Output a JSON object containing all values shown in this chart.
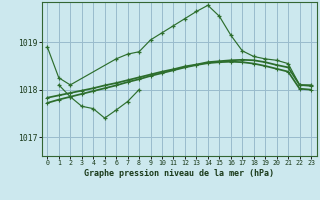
{
  "title": "Graphe pression niveau de la mer (hPa)",
  "bg_color": "#cce8ee",
  "plot_bg_color": "#cce8ee",
  "grid_color": "#99bbcc",
  "line_color": "#2d6e2d",
  "x_labels": [
    "0",
    "1",
    "2",
    "3",
    "4",
    "5",
    "6",
    "7",
    "8",
    "9",
    "10",
    "11",
    "12",
    "13",
    "14",
    "15",
    "16",
    "17",
    "18",
    "19",
    "20",
    "21",
    "22",
    "23"
  ],
  "ylim": [
    1016.6,
    1019.85
  ],
  "yticks": [
    1017,
    1018,
    1019
  ],
  "line1_x": [
    0,
    1,
    2,
    6,
    7,
    8,
    9,
    10,
    11,
    12,
    13,
    14,
    15,
    16,
    17,
    18,
    19,
    20,
    21,
    22,
    23
  ],
  "line1_y": [
    1018.9,
    1018.25,
    1018.1,
    1018.65,
    1018.75,
    1018.8,
    1019.05,
    1019.2,
    1019.35,
    1019.5,
    1019.65,
    1019.78,
    1019.55,
    1019.15,
    1018.82,
    1018.7,
    1018.65,
    1018.62,
    1018.55,
    1018.1,
    1018.1
  ],
  "line2_x": [
    1,
    2,
    3,
    4,
    5,
    6,
    7,
    8
  ],
  "line2_y": [
    1018.1,
    1017.85,
    1017.65,
    1017.6,
    1017.4,
    1017.57,
    1017.75,
    1018.0
  ],
  "trend1_x": [
    0,
    1,
    2,
    3,
    4,
    5,
    6,
    7,
    8,
    9,
    10,
    11,
    12,
    13,
    14,
    15,
    16,
    17,
    18,
    19,
    20,
    21,
    22,
    23
  ],
  "trend1_y": [
    1017.83,
    1017.88,
    1017.93,
    1017.98,
    1018.03,
    1018.09,
    1018.14,
    1018.2,
    1018.26,
    1018.32,
    1018.38,
    1018.43,
    1018.49,
    1018.53,
    1018.58,
    1018.6,
    1018.62,
    1018.63,
    1018.62,
    1018.58,
    1018.52,
    1018.47,
    1018.1,
    1018.08
  ],
  "trend2_x": [
    0,
    1,
    2,
    3,
    4,
    5,
    6,
    7,
    8,
    9,
    10,
    11,
    12,
    13,
    14,
    15,
    16,
    17,
    18,
    19,
    20,
    21,
    22,
    23
  ],
  "trend2_y": [
    1017.72,
    1017.79,
    1017.85,
    1017.91,
    1017.97,
    1018.03,
    1018.09,
    1018.16,
    1018.22,
    1018.29,
    1018.35,
    1018.41,
    1018.47,
    1018.52,
    1018.56,
    1018.58,
    1018.59,
    1018.58,
    1018.55,
    1018.5,
    1018.44,
    1018.38,
    1018.02,
    1018.0
  ]
}
